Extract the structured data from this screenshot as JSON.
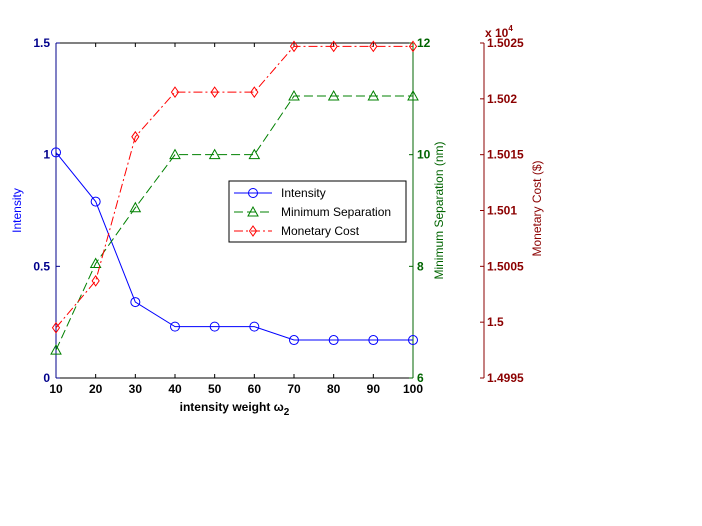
{
  "chart_data": {
    "type": "line",
    "x": [
      10,
      20,
      30,
      40,
      50,
      60,
      70,
      80,
      90,
      100
    ],
    "xlabel": "intensity weight ω",
    "xlabel_subscript": "2",
    "xlim": [
      10,
      100
    ],
    "xticks": [
      "10",
      "20",
      "30",
      "40",
      "50",
      "60",
      "70",
      "80",
      "90",
      "100"
    ],
    "axes": [
      {
        "id": "left",
        "label": "Intensity",
        "color": "#00008b",
        "ylim": [
          0,
          1.5
        ],
        "ticks": [
          0,
          0.5,
          1,
          1.5
        ],
        "tick_labels": [
          "0",
          "0.5",
          "1",
          "1.5"
        ]
      },
      {
        "id": "right1",
        "label": "Minimum Separation (nm)",
        "color": "#006400",
        "ylim": [
          6,
          12
        ],
        "ticks": [
          6,
          8,
          10,
          12
        ],
        "tick_labels": [
          "6",
          "8",
          "10",
          "12"
        ]
      },
      {
        "id": "right2",
        "label": "Monetary Cost ($)",
        "color": "#8b0000",
        "ylim": [
          1.4995,
          1.5025
        ],
        "ticks": [
          1.4995,
          1.5,
          1.5005,
          1.501,
          1.5015,
          1.502,
          1.5025
        ],
        "tick_labels": [
          "1.4995",
          "1.5",
          "1.5005",
          "1.501",
          "1.5015",
          "1.502",
          "1.5025"
        ],
        "exponent_label": "x 10",
        "exponent_power": "4"
      }
    ],
    "series": [
      {
        "name": "Intensity",
        "axis": "left",
        "color": "#0000ff",
        "marker": "circle",
        "dash": "none",
        "values": [
          1.01,
          0.79,
          0.34,
          0.23,
          0.23,
          0.23,
          0.17,
          0.17,
          0.17,
          0.17
        ]
      },
      {
        "name": "Minimum Separation",
        "axis": "right1",
        "color": "#008000",
        "marker": "triangle",
        "dash": "dashed",
        "values": [
          6.5,
          8.05,
          9.05,
          10.0,
          10.0,
          10.0,
          11.05,
          11.05,
          11.05,
          11.05
        ]
      },
      {
        "name": "Monetary Cost",
        "axis": "right2",
        "color": "#ff0000",
        "marker": "diamond",
        "dash": "dashdot",
        "values": [
          1.49995,
          1.50037,
          1.50166,
          1.50206,
          1.50206,
          1.50206,
          1.50247,
          1.50247,
          1.50247,
          1.50247
        ]
      }
    ],
    "legend_position": "center"
  }
}
